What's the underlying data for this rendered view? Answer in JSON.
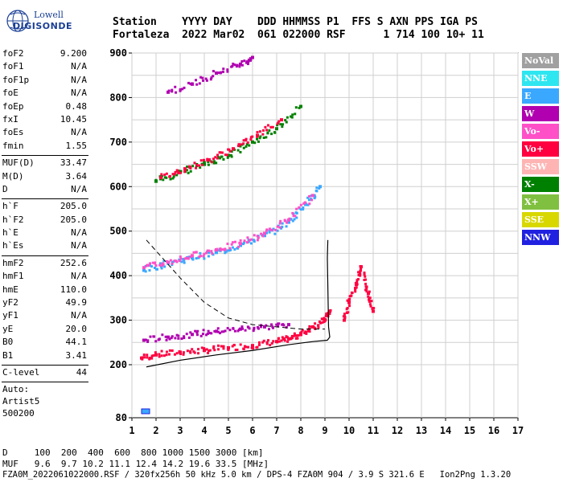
{
  "logo": {
    "line1": "Lowell",
    "line2": "DIGISONDE"
  },
  "header": {
    "line1": "Station    YYYY DAY    DDD HHMMSS P1  FFS S AXN PPS IGA PS",
    "line2": "Fortaleza  2022 Mar02  061 022000 RSF      1 714 100 10+ 11"
  },
  "params": {
    "group1": [
      {
        "label": "foF2",
        "value": "9.200"
      },
      {
        "label": "foF1",
        "value": "N/A"
      },
      {
        "label": "foF1p",
        "value": "N/A"
      },
      {
        "label": "foE",
        "value": "N/A"
      },
      {
        "label": "foEp",
        "value": "0.48"
      },
      {
        "label": "fxI",
        "value": "10.45"
      },
      {
        "label": "foEs",
        "value": "N/A"
      },
      {
        "label": "fmin",
        "value": "1.55"
      }
    ],
    "group2": [
      {
        "label": "MUF(D)",
        "value": "33.47"
      },
      {
        "label": "M(D)",
        "value": "3.64"
      },
      {
        "label": "D",
        "value": "N/A"
      }
    ],
    "group3": [
      {
        "label": "h`F",
        "value": "205.0"
      },
      {
        "label": "h`F2",
        "value": "205.0"
      },
      {
        "label": "h`E",
        "value": "N/A"
      },
      {
        "label": "h`Es",
        "value": "N/A"
      }
    ],
    "group4": [
      {
        "label": "hmF2",
        "value": "252.6"
      },
      {
        "label": "hmF1",
        "value": "N/A"
      },
      {
        "label": "hmE",
        "value": "110.0"
      },
      {
        "label": "yF2",
        "value": "49.9"
      },
      {
        "label": "yF1",
        "value": "N/A"
      },
      {
        "label": "yE",
        "value": "20.0"
      },
      {
        "label": "B0",
        "value": "44.1"
      },
      {
        "label": "B1",
        "value": "3.41"
      }
    ],
    "group5": [
      {
        "label": "C-level",
        "value": "44"
      }
    ],
    "auto": [
      "Auto:",
      "Artist5",
      "500200"
    ]
  },
  "legend": [
    {
      "label": "NoVal",
      "color": "#a0a0a0"
    },
    {
      "label": "NNE",
      "color": "#2ee6f0"
    },
    {
      "label": "E",
      "color": "#3aa8ff"
    },
    {
      "label": "W",
      "color": "#b000b0"
    },
    {
      "label": "Vo-",
      "color": "#ff50c8"
    },
    {
      "label": "Vo+",
      "color": "#ff0040"
    },
    {
      "label": "SSW",
      "color": "#ffb4b4"
    },
    {
      "label": "X-",
      "color": "#008000"
    },
    {
      "label": "X+",
      "color": "#80c040"
    },
    {
      "label": "SSE",
      "color": "#d8d800"
    },
    {
      "label": "NNW",
      "color": "#2020e0"
    }
  ],
  "bottom": {
    "d_line": "D     100  200  400  600  800 1000 1500 3000 [km]",
    "muf_line": "MUF   9.6  9.7 10.2 11.1 12.4 14.2 19.6 33.5 [MHz]",
    "footer": "FZA0M_2022061022000.RSF / 320fx256h 50 kHz 5.0 km / DPS-4 FZA0M 904 / 3.9 S 321.6 E   Ion2Png 1.3.20"
  },
  "chart_data": {
    "type": "scatter",
    "title": "",
    "xlabel": "",
    "ylabel": "",
    "xlim": [
      1,
      17
    ],
    "ylim": [
      80,
      900
    ],
    "xticks": [
      1,
      2,
      3,
      4,
      5,
      6,
      7,
      8,
      9,
      10,
      11,
      12,
      13,
      14,
      15,
      16,
      17
    ],
    "yticks": [
      80,
      200,
      300,
      400,
      500,
      600,
      700,
      800,
      900
    ],
    "grid": true,
    "series": [
      {
        "color": "#ff0040",
        "points": [
          [
            1.4,
            215
          ],
          [
            2,
            222
          ],
          [
            3,
            228
          ],
          [
            4,
            232
          ],
          [
            5,
            238
          ],
          [
            6,
            243
          ],
          [
            7,
            252
          ],
          [
            7.5,
            258
          ],
          [
            8,
            268
          ],
          [
            8.5,
            285
          ],
          [
            9,
            300
          ],
          [
            9.2,
            320
          ]
        ]
      },
      {
        "color": "#b000b0",
        "points": [
          [
            1.5,
            255
          ],
          [
            2.5,
            262
          ],
          [
            3.5,
            268
          ],
          [
            4.5,
            275
          ],
          [
            5.5,
            280
          ],
          [
            6.5,
            285
          ],
          [
            7.5,
            290
          ]
        ]
      },
      {
        "color": "#3aa8ff",
        "points": [
          [
            1.5,
            412
          ],
          [
            2.5,
            428
          ],
          [
            3.5,
            440
          ],
          [
            4.5,
            452
          ],
          [
            5.5,
            468
          ],
          [
            6.5,
            490
          ],
          [
            7.5,
            520
          ],
          [
            8.2,
            560
          ],
          [
            8.8,
            600
          ]
        ]
      },
      {
        "color": "#ff50c8",
        "points": [
          [
            1.5,
            418
          ],
          [
            2.5,
            430
          ],
          [
            3.5,
            445
          ],
          [
            4.5,
            458
          ],
          [
            5.5,
            472
          ],
          [
            6.5,
            495
          ],
          [
            7.5,
            525
          ],
          [
            8.5,
            580
          ]
        ]
      },
      {
        "color": "#008000",
        "points": [
          [
            2,
            612
          ],
          [
            3,
            632
          ],
          [
            4,
            650
          ],
          [
            5,
            670
          ],
          [
            6,
            700
          ],
          [
            7,
            730
          ],
          [
            8,
            780
          ]
        ]
      },
      {
        "color": "#ff0040",
        "points": [
          [
            2.2,
            620
          ],
          [
            3.2,
            640
          ],
          [
            4.2,
            660
          ],
          [
            5.2,
            685
          ],
          [
            6.2,
            715
          ],
          [
            7.2,
            750
          ]
        ]
      },
      {
        "color": "#b000b0",
        "points": [
          [
            2.5,
            812
          ],
          [
            3.5,
            830
          ],
          [
            4.5,
            855
          ],
          [
            5.5,
            875
          ],
          [
            6,
            890
          ]
        ]
      },
      {
        "color": "#ff0040",
        "points": [
          [
            9.8,
            300
          ],
          [
            10,
            340
          ],
          [
            10.3,
            380
          ],
          [
            10.5,
            420
          ],
          [
            10.8,
            360
          ],
          [
            11,
            320
          ]
        ]
      }
    ],
    "profile": [
      [
        1.6,
        195
      ],
      [
        3,
        210
      ],
      [
        4.5,
        222
      ],
      [
        6,
        232
      ],
      [
        7.5,
        245
      ],
      [
        8.5,
        252
      ],
      [
        9.1,
        255
      ],
      [
        9.2,
        262
      ],
      [
        9.15,
        285
      ],
      [
        9.1,
        440
      ],
      [
        9.12,
        480
      ]
    ],
    "dashed": [
      [
        1.6,
        480
      ],
      [
        3,
        395
      ],
      [
        4,
        340
      ],
      [
        5,
        305
      ],
      [
        6,
        290
      ],
      [
        7,
        285
      ],
      [
        8,
        280
      ],
      [
        9,
        280
      ]
    ]
  }
}
